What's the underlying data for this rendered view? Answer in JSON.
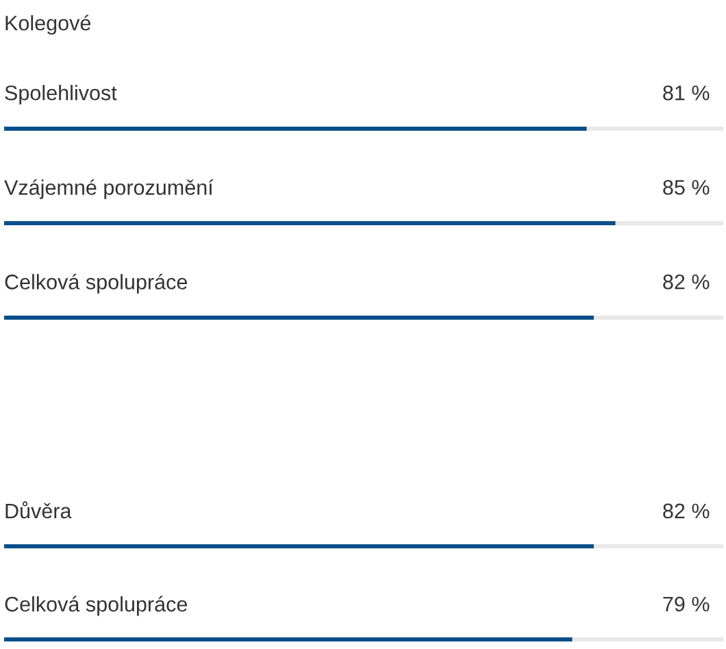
{
  "chart_data": [
    {
      "type": "bar",
      "orientation": "horizontal",
      "title": "Kolegové",
      "categories": [
        "Spolehlivost",
        "Vzájemné porozumění",
        "Celková spolupráce"
      ],
      "series": [
        {
          "color": "#0b4f8a",
          "values": [
            81,
            85,
            82
          ],
          "value_labels": [
            "81 %",
            "85 %",
            "82 %"
          ]
        }
      ],
      "xlim": [
        0,
        100
      ],
      "tick_labels": "y",
      "grid": "y"
    },
    {
      "type": "bar",
      "orientation": "horizontal",
      "categories": [
        "Důvěra",
        "Celková spolupráce"
      ],
      "series": [
        {
          "color": "#0b4f8a",
          "values": [
            82,
            79
          ],
          "value_labels": [
            "82 %",
            "79 %"
          ]
        }
      ],
      "xlim": [
        0,
        100
      ],
      "tick_labels": "y",
      "grid": "y"
    }
  ]
}
